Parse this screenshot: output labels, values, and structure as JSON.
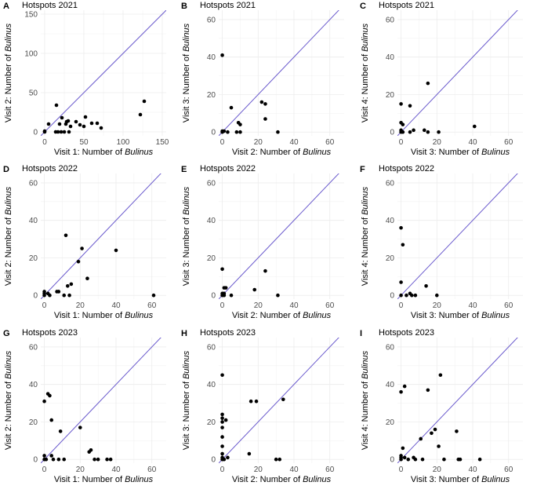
{
  "figure": {
    "italic_word": "Bulinus"
  },
  "chart_data": [
    {
      "type": "scatter",
      "label": "A",
      "title": "Hotspots 2021",
      "xlabel": "Visit 1: Number of Bulinus",
      "ylabel": "Visit 2: Number of Bulinus",
      "xlim": [
        -5,
        155
      ],
      "ylim": [
        -5,
        155
      ],
      "xticks": [
        0,
        50,
        100,
        150
      ],
      "yticks": [
        0,
        50,
        100,
        150
      ],
      "reference_line": "y = x",
      "colors": {
        "points": "#000000",
        "line": "#6a5acd",
        "grid": "#ececec"
      },
      "points": [
        [
          0,
          0
        ],
        [
          0,
          1
        ],
        [
          5,
          10
        ],
        [
          14,
          0
        ],
        [
          15,
          34
        ],
        [
          17,
          0
        ],
        [
          19,
          10
        ],
        [
          21,
          0
        ],
        [
          22,
          18
        ],
        [
          25,
          0
        ],
        [
          27,
          10
        ],
        [
          28,
          13
        ],
        [
          30,
          14
        ],
        [
          31,
          0
        ],
        [
          33,
          7
        ],
        [
          40,
          13
        ],
        [
          45,
          9
        ],
        [
          50,
          7
        ],
        [
          52,
          19
        ],
        [
          60,
          11
        ],
        [
          67,
          11
        ],
        [
          72,
          5
        ],
        [
          122,
          22
        ],
        [
          127,
          39
        ]
      ]
    },
    {
      "type": "scatter",
      "label": "B",
      "title": "Hotspots 2021",
      "xlabel": "Visit 2: Number of Bulinus",
      "ylabel": "Visit 3: Number of Bulinus",
      "xlim": [
        -2,
        68
      ],
      "ylim": [
        -2,
        65
      ],
      "xticks": [
        0,
        20,
        40,
        60
      ],
      "yticks": [
        0,
        20,
        40,
        60
      ],
      "reference_line": "y = x",
      "colors": {
        "points": "#000000",
        "line": "#6a5acd",
        "grid": "#ececec"
      },
      "points": [
        [
          0,
          0
        ],
        [
          0,
          0.5
        ],
        [
          1,
          0.5
        ],
        [
          0,
          41
        ],
        [
          3,
          0
        ],
        [
          5,
          13
        ],
        [
          8,
          0
        ],
        [
          9,
          5
        ],
        [
          10,
          0
        ],
        [
          10,
          4
        ],
        [
          22,
          16
        ],
        [
          24,
          15
        ],
        [
          24,
          7
        ],
        [
          31,
          0
        ]
      ]
    },
    {
      "type": "scatter",
      "label": "C",
      "title": "Hotspots 2021",
      "xlabel": "Visit 3: Number of Bulinus",
      "ylabel": "Visit 4: Number of Bulinus",
      "xlim": [
        -2,
        68
      ],
      "ylim": [
        -2,
        65
      ],
      "xticks": [
        0,
        20,
        40,
        60
      ],
      "yticks": [
        0,
        20,
        40,
        60
      ],
      "reference_line": "y = x",
      "colors": {
        "points": "#000000",
        "line": "#6a5acd",
        "grid": "#ececec"
      },
      "points": [
        [
          0,
          0
        ],
        [
          0,
          1
        ],
        [
          0,
          5
        ],
        [
          1,
          4
        ],
        [
          0,
          15
        ],
        [
          1,
          0
        ],
        [
          5,
          14
        ],
        [
          5,
          0
        ],
        [
          7,
          1
        ],
        [
          13,
          1
        ],
        [
          15,
          26
        ],
        [
          15,
          0
        ],
        [
          21,
          0
        ],
        [
          41,
          3
        ]
      ]
    },
    {
      "type": "scatter",
      "label": "D",
      "title": "Hotspots 2022",
      "xlabel": "Visit 1: Number of Bulinus",
      "ylabel": "Visit 2: Number of Bulinus",
      "xlim": [
        -2,
        68
      ],
      "ylim": [
        -2,
        65
      ],
      "xticks": [
        0,
        20,
        40,
        60
      ],
      "yticks": [
        0,
        20,
        40,
        60
      ],
      "reference_line": "y = x",
      "colors": {
        "points": "#000000",
        "line": "#6a5acd",
        "grid": "#ececec"
      },
      "points": [
        [
          0,
          0
        ],
        [
          0,
          1
        ],
        [
          0,
          2
        ],
        [
          2,
          1
        ],
        [
          3,
          0
        ],
        [
          7,
          2
        ],
        [
          8,
          2
        ],
        [
          11,
          0
        ],
        [
          12,
          32
        ],
        [
          13,
          5
        ],
        [
          14,
          0
        ],
        [
          15,
          6
        ],
        [
          19,
          18
        ],
        [
          21,
          25
        ],
        [
          24,
          9
        ],
        [
          40,
          24
        ],
        [
          61,
          0
        ]
      ]
    },
    {
      "type": "scatter",
      "label": "E",
      "title": "Hotspots 2022",
      "xlabel": "Visit 2: Number of Bulinus",
      "ylabel": "Visit 3: Number of Bulinus",
      "xlim": [
        -2,
        68
      ],
      "ylim": [
        -2,
        65
      ],
      "xticks": [
        0,
        20,
        40,
        60
      ],
      "yticks": [
        0,
        20,
        40,
        60
      ],
      "reference_line": "y = x",
      "colors": {
        "points": "#000000",
        "line": "#6a5acd",
        "grid": "#ececec"
      },
      "points": [
        [
          0,
          0
        ],
        [
          0,
          1
        ],
        [
          1,
          0
        ],
        [
          1,
          1
        ],
        [
          0,
          14
        ],
        [
          1,
          4
        ],
        [
          2,
          4
        ],
        [
          5,
          0
        ],
        [
          18,
          3
        ],
        [
          24,
          13
        ],
        [
          31,
          0
        ]
      ]
    },
    {
      "type": "scatter",
      "label": "F",
      "title": "Hotspots 2022",
      "xlabel": "Visit 3: Number of Bulinus",
      "ylabel": "Visit 4: Number of Bulinus",
      "xlim": [
        -2,
        68
      ],
      "ylim": [
        -2,
        65
      ],
      "xticks": [
        0,
        20,
        40,
        60
      ],
      "yticks": [
        0,
        20,
        40,
        60
      ],
      "reference_line": "y = x",
      "colors": {
        "points": "#000000",
        "line": "#6a5acd",
        "grid": "#ececec"
      },
      "points": [
        [
          0,
          0
        ],
        [
          0,
          7
        ],
        [
          0,
          36
        ],
        [
          1,
          27
        ],
        [
          3,
          0
        ],
        [
          5,
          1
        ],
        [
          6,
          0
        ],
        [
          8,
          0
        ],
        [
          14,
          5
        ],
        [
          20,
          0
        ]
      ]
    },
    {
      "type": "scatter",
      "label": "G",
      "title": "Hotspots 2023",
      "xlabel": "Visit 1: Number of Bulinus",
      "ylabel": "Visit 2: Number of Bulinus",
      "xlim": [
        -2,
        68
      ],
      "ylim": [
        -2,
        65
      ],
      "xticks": [
        0,
        20,
        40,
        60
      ],
      "yticks": [
        0,
        20,
        40,
        60
      ],
      "reference_line": "y = x",
      "colors": {
        "points": "#000000",
        "line": "#6a5acd",
        "grid": "#ececec"
      },
      "points": [
        [
          0,
          0
        ],
        [
          0,
          2
        ],
        [
          0,
          31
        ],
        [
          1,
          0
        ],
        [
          2,
          35
        ],
        [
          3,
          34
        ],
        [
          4,
          2
        ],
        [
          4,
          21
        ],
        [
          5,
          0
        ],
        [
          8,
          0
        ],
        [
          9,
          15
        ],
        [
          11,
          0
        ],
        [
          20,
          17
        ],
        [
          25,
          4
        ],
        [
          26,
          5
        ],
        [
          28,
          0
        ],
        [
          30,
          0
        ],
        [
          35,
          0
        ],
        [
          37,
          0
        ]
      ]
    },
    {
      "type": "scatter",
      "label": "H",
      "title": "Hotspots 2023",
      "xlabel": "Visit 2: Number of Bulinus",
      "ylabel": "Visit 3: Number of Bulinus",
      "xlim": [
        -2,
        68
      ],
      "ylim": [
        -2,
        65
      ],
      "xticks": [
        0,
        20,
        40,
        60
      ],
      "yticks": [
        0,
        20,
        40,
        60
      ],
      "reference_line": "y = x",
      "colors": {
        "points": "#000000",
        "line": "#6a5acd",
        "grid": "#ececec"
      },
      "points": [
        [
          0,
          0
        ],
        [
          0,
          1
        ],
        [
          0,
          3
        ],
        [
          0,
          7
        ],
        [
          0,
          12
        ],
        [
          0,
          17
        ],
        [
          0,
          20
        ],
        [
          0,
          22
        ],
        [
          0,
          24
        ],
        [
          0,
          45
        ],
        [
          1,
          0
        ],
        [
          2,
          21
        ],
        [
          3,
          1
        ],
        [
          15,
          3
        ],
        [
          16,
          31
        ],
        [
          19,
          31
        ],
        [
          30,
          0
        ],
        [
          32,
          0
        ],
        [
          34,
          32
        ]
      ]
    },
    {
      "type": "scatter",
      "label": "I",
      "title": "Hotspots 2023",
      "xlabel": "Visit 3: Number of Bulinus",
      "ylabel": "Visit 4: Number of Bulinus",
      "xlim": [
        -2,
        68
      ],
      "ylim": [
        -2,
        65
      ],
      "xticks": [
        0,
        20,
        40,
        60
      ],
      "yticks": [
        0,
        20,
        40,
        60
      ],
      "reference_line": "y = x",
      "colors": {
        "points": "#000000",
        "line": "#6a5acd",
        "grid": "#ececec"
      },
      "points": [
        [
          0,
          0
        ],
        [
          0,
          1
        ],
        [
          0,
          2
        ],
        [
          0,
          36
        ],
        [
          1,
          6
        ],
        [
          2,
          39
        ],
        [
          2,
          1
        ],
        [
          4,
          0
        ],
        [
          7,
          1
        ],
        [
          8,
          0
        ],
        [
          11,
          11
        ],
        [
          12,
          0
        ],
        [
          15,
          37
        ],
        [
          17,
          14
        ],
        [
          19,
          16
        ],
        [
          21,
          7
        ],
        [
          22,
          45
        ],
        [
          24,
          0
        ],
        [
          31,
          15
        ],
        [
          32,
          0
        ],
        [
          33,
          0
        ],
        [
          44,
          0
        ]
      ]
    }
  ]
}
